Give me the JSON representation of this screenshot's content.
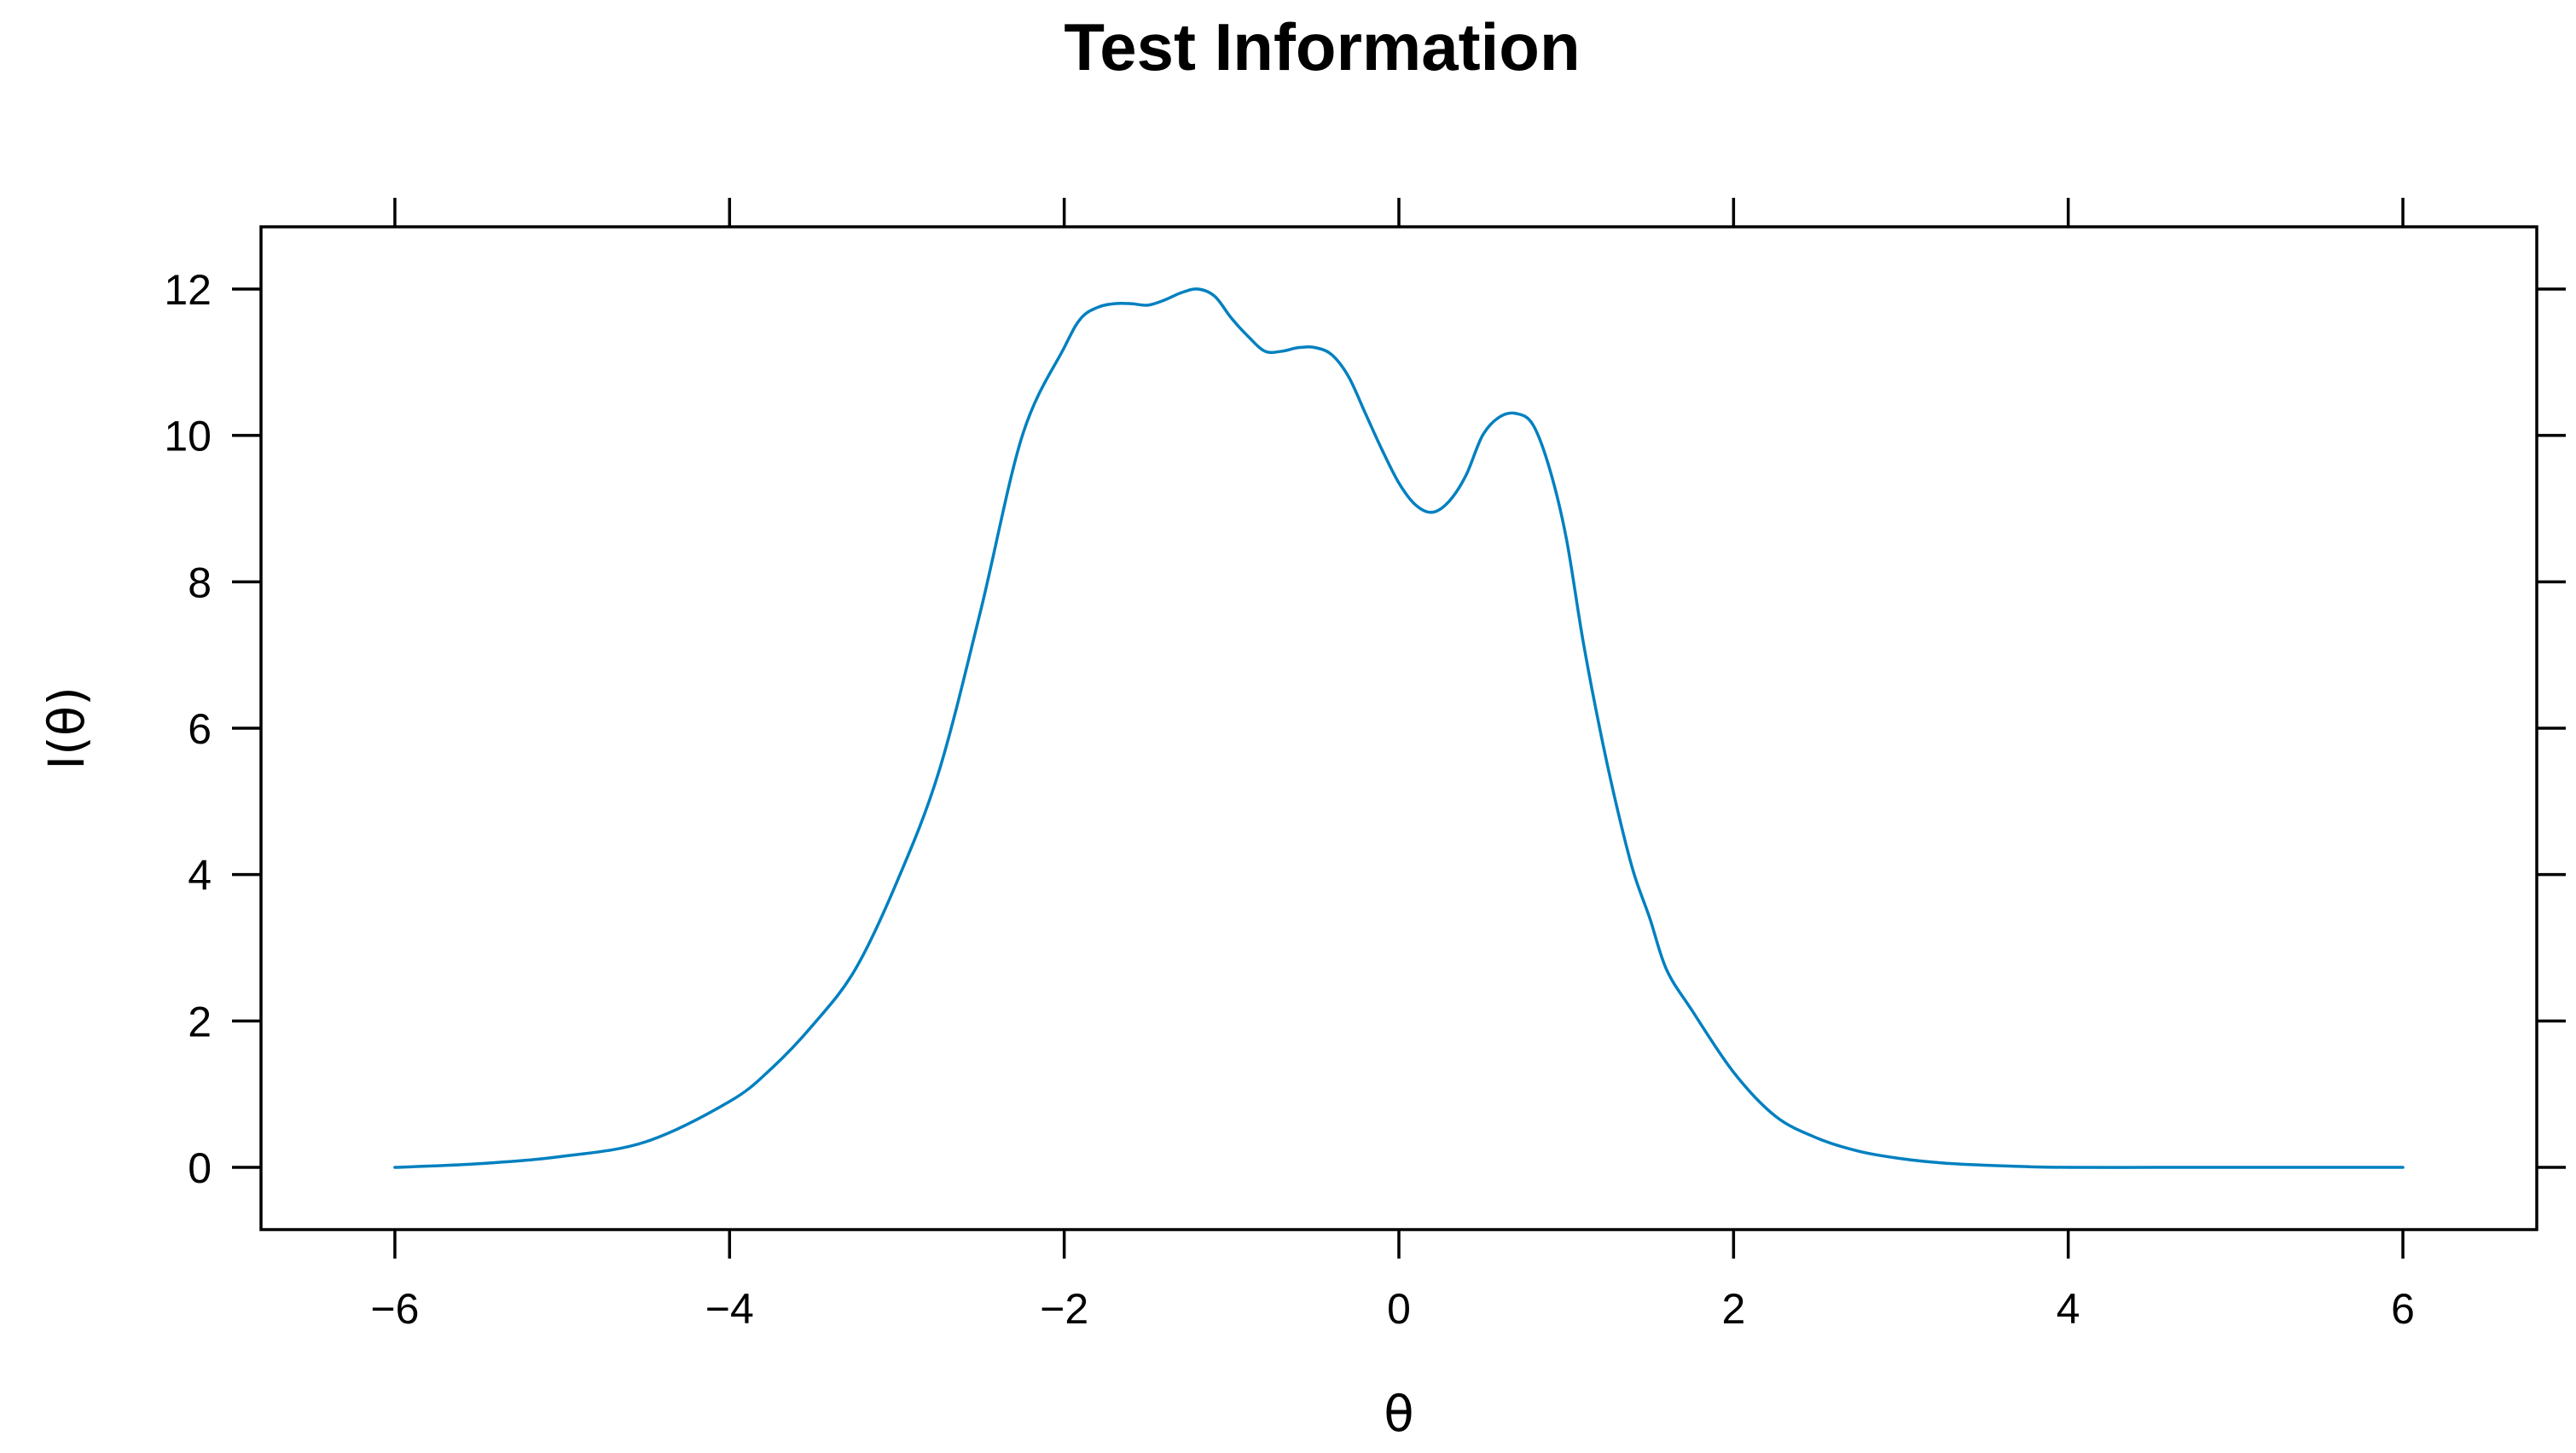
{
  "chart_data": {
    "type": "line",
    "title": "Test Information",
    "xlabel": "θ",
    "ylabel": "I(θ)",
    "xlim": [
      -6.8,
      6.8
    ],
    "ylim": [
      -0.85,
      12.85
    ],
    "x_ticks": [
      -6,
      -4,
      -2,
      0,
      2,
      4,
      6
    ],
    "x_tick_labels": [
      "−6",
      "−4",
      "−2",
      "0",
      "2",
      "4",
      "6"
    ],
    "y_ticks": [
      0,
      2,
      4,
      6,
      8,
      10,
      12
    ],
    "y_tick_labels": [
      "0",
      "2",
      "4",
      "6",
      "8",
      "10",
      "12"
    ],
    "ticks_on_all_sides": true,
    "grid": false,
    "legend": "none",
    "line_color": "#0080C0",
    "series": [
      {
        "x": [
          -6.0,
          -5.5,
          -5.0,
          -4.5,
          -4.0,
          -3.75,
          -3.5,
          -3.25,
          -3.0,
          -2.75,
          -2.5,
          -2.25,
          -2.0,
          -1.9,
          -1.8,
          -1.7,
          -1.6,
          -1.5,
          -1.4,
          -1.3,
          -1.2,
          -1.1,
          -1.0,
          -0.9,
          -0.8,
          -0.7,
          -0.6,
          -0.5,
          -0.4,
          -0.3,
          -0.2,
          -0.1,
          0.0,
          0.1,
          0.2,
          0.3,
          0.4,
          0.5,
          0.6,
          0.7,
          0.8,
          0.9,
          1.0,
          1.1,
          1.2,
          1.3,
          1.4,
          1.5,
          1.6,
          1.75,
          2.0,
          2.25,
          2.5,
          2.75,
          3.0,
          3.25,
          3.5,
          3.75,
          4.0,
          4.5,
          5.0,
          5.5,
          6.0
        ],
        "y": [
          0.0,
          0.05,
          0.15,
          0.35,
          0.9,
          1.35,
          1.95,
          2.7,
          3.9,
          5.4,
          7.6,
          10.0,
          11.2,
          11.6,
          11.75,
          11.8,
          11.8,
          11.78,
          11.85,
          11.95,
          12.0,
          11.9,
          11.6,
          11.35,
          11.15,
          11.15,
          11.2,
          11.2,
          11.1,
          10.8,
          10.3,
          9.8,
          9.35,
          9.05,
          8.95,
          9.1,
          9.45,
          10.0,
          10.25,
          10.3,
          10.15,
          9.55,
          8.6,
          7.2,
          6.0,
          4.95,
          4.05,
          3.4,
          2.7,
          2.15,
          1.3,
          0.7,
          0.4,
          0.22,
          0.12,
          0.06,
          0.03,
          0.01,
          0.0,
          0.0,
          0.0,
          0.0,
          0.0
        ]
      }
    ]
  }
}
